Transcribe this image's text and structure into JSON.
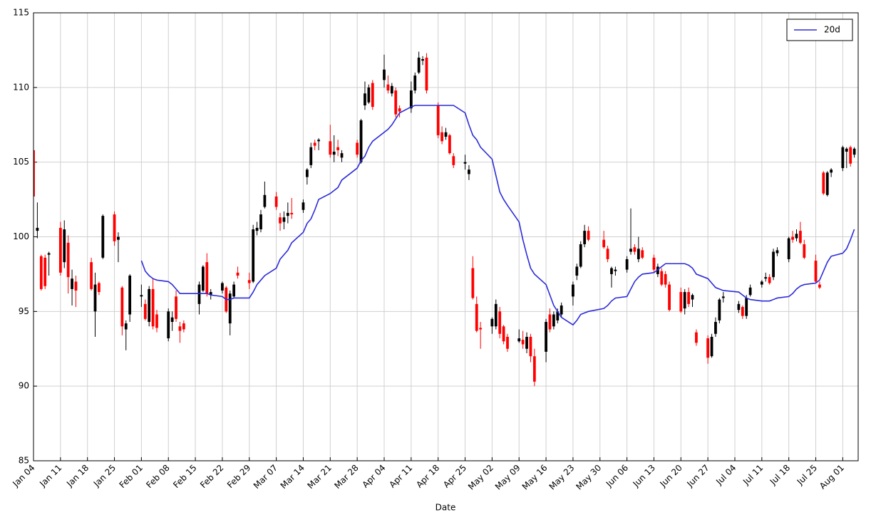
{
  "chart_data": {
    "type": "candlestick",
    "x_label": "Date",
    "x": [
      "Jan 04",
      "Jan 05",
      "Jan 06",
      "Jan 07",
      "Jan 08",
      "Jan 11",
      "Jan 12",
      "Jan 13",
      "Jan 14",
      "Jan 15",
      "Jan 19",
      "Jan 20",
      "Jan 21",
      "Jan 22",
      "Jan 25",
      "Jan 26",
      "Jan 27",
      "Jan 28",
      "Jan 29",
      "Feb 01",
      "Feb 02",
      "Feb 03",
      "Feb 04",
      "Feb 05",
      "Feb 08",
      "Feb 09",
      "Feb 10",
      "Feb 11",
      "Feb 12",
      "Feb 16",
      "Feb 17",
      "Feb 18",
      "Feb 19",
      "Feb 22",
      "Feb 23",
      "Feb 24",
      "Feb 25",
      "Feb 26",
      "Feb 29",
      "Mar 01",
      "Mar 02",
      "Mar 03",
      "Mar 04",
      "Mar 07",
      "Mar 08",
      "Mar 09",
      "Mar 10",
      "Mar 11",
      "Mar 14",
      "Mar 15",
      "Mar 16",
      "Mar 17",
      "Mar 18",
      "Mar 21",
      "Mar 22",
      "Mar 23",
      "Mar 24",
      "Mar 28",
      "Mar 29",
      "Mar 30",
      "Mar 31",
      "Apr 01",
      "Apr 04",
      "Apr 05",
      "Apr 06",
      "Apr 07",
      "Apr 08",
      "Apr 11",
      "Apr 12",
      "Apr 13",
      "Apr 14",
      "Apr 15",
      "Apr 18",
      "Apr 19",
      "Apr 20",
      "Apr 21",
      "Apr 22",
      "Apr 25",
      "Apr 26",
      "Apr 27",
      "Apr 28",
      "Apr 29",
      "May 02",
      "May 03",
      "May 04",
      "May 05",
      "May 06",
      "May 09",
      "May 10",
      "May 11",
      "May 12",
      "May 13",
      "May 16",
      "May 17",
      "May 18",
      "May 19",
      "May 20",
      "May 23",
      "May 24",
      "May 25",
      "May 26",
      "May 27",
      "May 31",
      "Jun 01",
      "Jun 02",
      "Jun 03",
      "Jun 06",
      "Jun 07",
      "Jun 08",
      "Jun 09",
      "Jun 10",
      "Jun 13",
      "Jun 14",
      "Jun 15",
      "Jun 16",
      "Jun 17",
      "Jun 20",
      "Jun 21",
      "Jun 22",
      "Jun 23",
      "Jun 24",
      "Jun 27",
      "Jun 28",
      "Jun 29",
      "Jun 30",
      "Jul 01",
      "Jul 05",
      "Jul 06",
      "Jul 07",
      "Jul 08",
      "Jul 11",
      "Jul 12",
      "Jul 13",
      "Jul 14",
      "Jul 15",
      "Jul 18",
      "Jul 19",
      "Jul 20",
      "Jul 21",
      "Jul 22",
      "Jul 25",
      "Jul 26",
      "Jul 27",
      "Jul 28",
      "Jul 29",
      "Aug 01",
      "Aug 02",
      "Aug 03",
      "Aug 04"
    ],
    "open": [
      105.8,
      100.4,
      98.7,
      98.6,
      98.8,
      100.6,
      98.3,
      99.6,
      96.5,
      97.0,
      98.3,
      95.0,
      96.9,
      98.6,
      101.5,
      99.8,
      96.6,
      93.8,
      94.8,
      96.0,
      95.5,
      94.3,
      96.5,
      94.8,
      93.2,
      94.3,
      96.0,
      94.0,
      94.2,
      95.5,
      96.4,
      98.3,
      96.1,
      96.4,
      96.6,
      94.2,
      96.0,
      97.6,
      97.1,
      97.0,
      100.4,
      100.5,
      102.0,
      102.7,
      101.3,
      101.0,
      101.4,
      101.6,
      101.8,
      104.0,
      104.8,
      106.3,
      106.4,
      106.4,
      105.5,
      106.0,
      105.3,
      106.3,
      105.0,
      108.8,
      109.0,
      110.3,
      110.5,
      110.2,
      109.6,
      109.8,
      108.6,
      108.6,
      109.8,
      111.0,
      111.8,
      112.0,
      108.8,
      107.0,
      106.7,
      106.8,
      105.4,
      104.9,
      104.2,
      97.9,
      95.5,
      93.9,
      94.0,
      94.0,
      95.0,
      94.0,
      93.3,
      93.0,
      93.1,
      92.5,
      93.3,
      92.0,
      92.3,
      94.8,
      94.0,
      94.4,
      94.8,
      96.0,
      97.4,
      98.0,
      99.5,
      100.4,
      99.8,
      99.2,
      97.5,
      97.7,
      97.8,
      99.0,
      99.3,
      98.5,
      99.1,
      98.6,
      97.5,
      97.7,
      97.5,
      96.8,
      96.3,
      95.2,
      96.3,
      95.8,
      93.6,
      93.2,
      92.0,
      93.5,
      94.4,
      95.9,
      95.1,
      95.3,
      94.7,
      96.1,
      96.8,
      97.2,
      97.3,
      97.3,
      98.9,
      98.5,
      100.0,
      99.9,
      100.4,
      99.5,
      98.4,
      96.8,
      104.3,
      102.8,
      104.3,
      104.6,
      105.7,
      106.0,
      105.5
    ],
    "high": [
      106.0,
      102.3,
      98.8,
      98.8,
      99.0,
      101.0,
      101.1,
      100.1,
      97.8,
      97.4,
      98.6,
      97.6,
      97.0,
      101.5,
      101.7,
      100.3,
      96.7,
      94.4,
      97.5,
      96.8,
      95.8,
      96.7,
      97.2,
      95.1,
      95.2,
      95.0,
      96.4,
      94.3,
      94.4,
      97.0,
      98.1,
      98.9,
      96.5,
      97.0,
      96.7,
      96.4,
      97.0,
      98.0,
      97.6,
      100.8,
      101.0,
      101.8,
      103.7,
      103.0,
      101.6,
      101.7,
      102.3,
      102.6,
      102.5,
      104.6,
      106.3,
      106.5,
      106.6,
      107.5,
      106.8,
      106.5,
      105.8,
      106.5,
      107.9,
      110.4,
      110.2,
      110.5,
      112.2,
      110.8,
      110.3,
      110.0,
      108.8,
      110.4,
      111.0,
      112.4,
      112.1,
      112.3,
      109.0,
      107.4,
      107.3,
      106.9,
      105.6,
      105.5,
      104.8,
      98.7,
      96.0,
      94.3,
      94.6,
      95.8,
      95.3,
      94.1,
      93.5,
      93.8,
      93.7,
      93.6,
      93.5,
      92.5,
      94.5,
      95.2,
      95.0,
      95.2,
      95.6,
      97.0,
      98.2,
      99.7,
      100.8,
      100.7,
      100.4,
      99.4,
      98.0,
      98.0,
      98.7,
      101.9,
      99.5,
      100.0,
      99.3,
      98.8,
      98.2,
      97.9,
      97.7,
      97.0,
      96.6,
      96.5,
      96.6,
      96.2,
      93.8,
      93.4,
      93.5,
      94.6,
      95.9,
      96.3,
      95.7,
      95.4,
      96.1,
      96.8,
      97.1,
      97.6,
      97.5,
      99.2,
      99.3,
      100.0,
      100.4,
      100.5,
      101.0,
      99.8,
      98.8,
      97.0,
      104.4,
      104.4,
      104.6,
      106.1,
      106.0,
      106.1,
      106.0
    ],
    "low": [
      102.4,
      99.9,
      96.4,
      96.5,
      97.4,
      97.4,
      97.9,
      96.2,
      95.4,
      95.3,
      96.4,
      93.3,
      96.1,
      98.5,
      99.4,
      98.3,
      93.4,
      92.4,
      94.3,
      95.3,
      94.4,
      94.0,
      93.8,
      93.6,
      93.0,
      93.7,
      94.3,
      92.9,
      93.6,
      94.8,
      96.3,
      96.0,
      95.8,
      96.2,
      94.9,
      93.4,
      95.9,
      97.2,
      96.5,
      96.9,
      100.1,
      100.3,
      101.9,
      101.8,
      100.4,
      100.5,
      100.9,
      101.2,
      101.6,
      103.5,
      104.6,
      105.8,
      105.8,
      105.3,
      105.0,
      105.4,
      105.0,
      105.3,
      104.9,
      108.5,
      108.9,
      108.5,
      110.0,
      109.6,
      109.4,
      108.0,
      108.0,
      108.3,
      109.6,
      110.9,
      111.5,
      109.6,
      106.6,
      106.2,
      106.5,
      105.5,
      104.6,
      104.5,
      103.8,
      95.8,
      93.6,
      92.5,
      93.5,
      93.8,
      93.2,
      92.8,
      92.3,
      92.9,
      92.5,
      92.2,
      91.6,
      90.0,
      91.6,
      93.6,
      93.8,
      94.2,
      94.6,
      95.4,
      97.1,
      97.9,
      99.3,
      99.7,
      99.2,
      98.3,
      96.6,
      97.4,
      97.6,
      98.8,
      98.8,
      98.3,
      98.5,
      97.6,
      97.3,
      96.7,
      96.6,
      95.0,
      94.9,
      94.8,
      95.3,
      95.3,
      92.7,
      91.5,
      91.9,
      93.3,
      94.2,
      95.6,
      94.9,
      94.5,
      94.5,
      96.0,
      96.6,
      97.0,
      96.8,
      97.1,
      98.7,
      98.3,
      99.6,
      99.7,
      99.5,
      98.5,
      96.9,
      96.5,
      102.8,
      102.7,
      104.0,
      104.4,
      104.6,
      104.7,
      105.3
    ],
    "close": [
      102.7,
      100.6,
      96.5,
      96.7,
      98.9,
      97.6,
      100.5,
      97.3,
      97.2,
      96.4,
      96.5,
      96.8,
      96.3,
      101.4,
      99.7,
      100.0,
      94.0,
      94.2,
      97.4,
      96.1,
      94.5,
      96.5,
      94.0,
      93.9,
      95.0,
      94.6,
      94.5,
      93.7,
      93.8,
      96.8,
      98.0,
      96.2,
      96.3,
      96.9,
      95.0,
      96.2,
      96.8,
      97.4,
      96.9,
      100.5,
      100.6,
      101.5,
      102.8,
      102.0,
      100.9,
      101.3,
      101.6,
      101.5,
      102.3,
      104.5,
      106.0,
      106.1,
      106.5,
      105.5,
      105.7,
      105.8,
      105.6,
      105.5,
      107.8,
      109.6,
      110.0,
      108.7,
      111.2,
      109.8,
      110.1,
      108.2,
      108.4,
      109.8,
      110.8,
      112.0,
      111.9,
      109.8,
      106.8,
      106.4,
      107.0,
      105.6,
      104.8,
      105.0,
      104.5,
      95.9,
      93.7,
      93.8,
      94.5,
      95.5,
      93.5,
      93.0,
      92.5,
      93.2,
      92.8,
      93.3,
      92.0,
      90.3,
      94.3,
      93.8,
      94.8,
      95.0,
      95.4,
      96.8,
      98.0,
      99.5,
      100.4,
      99.8,
      99.3,
      98.5,
      97.9,
      97.8,
      98.5,
      99.2,
      99.0,
      99.2,
      98.6,
      97.8,
      98.0,
      96.8,
      96.8,
      95.1,
      95.0,
      96.3,
      95.5,
      96.1,
      92.9,
      91.9,
      93.3,
      94.3,
      95.8,
      96.0,
      95.5,
      94.7,
      95.9,
      96.6,
      97.0,
      97.3,
      96.9,
      99.0,
      99.1,
      99.9,
      99.8,
      100.2,
      99.6,
      98.6,
      97.0,
      96.6,
      102.9,
      104.3,
      104.5,
      106.0,
      105.9,
      104.9,
      105.9
    ],
    "up_color": "#000000",
    "down_color": "#ff0000",
    "series": [
      {
        "name": "20d",
        "color": "#2b2bd9",
        "values": [
          null,
          null,
          null,
          null,
          null,
          null,
          null,
          null,
          null,
          null,
          null,
          null,
          null,
          null,
          null,
          null,
          null,
          null,
          null,
          98.4,
          97.7,
          97.4,
          97.2,
          97.1,
          97.0,
          96.8,
          96.5,
          96.2,
          96.2,
          96.2,
          96.2,
          96.2,
          96.1,
          96.0,
          95.8,
          95.8,
          95.9,
          95.9,
          95.9,
          96.3,
          96.8,
          97.1,
          97.4,
          97.9,
          98.5,
          98.8,
          99.1,
          99.6,
          100.3,
          100.9,
          101.2,
          101.8,
          102.5,
          102.9,
          103.1,
          103.3,
          103.8,
          104.6,
          105.1,
          105.4,
          106.0,
          106.4,
          107.0,
          107.2,
          107.5,
          107.9,
          108.3,
          108.7,
          108.8,
          108.8,
          108.8,
          108.8,
          108.8,
          108.8,
          108.8,
          108.8,
          108.8,
          108.3,
          107.5,
          106.8,
          106.5,
          106.0,
          105.2,
          104.1,
          103.0,
          102.5,
          102.1,
          101.0,
          99.8,
          98.8,
          97.9,
          97.5,
          96.8,
          96.1,
          95.4,
          95.0,
          94.6,
          94.1,
          94.4,
          94.8,
          94.9,
          95.0,
          95.2,
          95.4,
          95.7,
          95.9,
          96.0,
          96.5,
          97.0,
          97.3,
          97.5,
          97.6,
          97.8,
          98.0,
          98.2,
          98.2,
          98.2,
          98.2,
          98.1,
          97.9,
          97.5,
          97.2,
          96.9,
          96.6,
          96.5,
          96.4,
          96.3,
          96.1,
          95.9,
          95.8,
          95.7,
          95.7,
          95.7,
          95.8,
          95.9,
          96.0,
          96.2,
          96.5,
          96.7,
          96.8,
          96.9,
          97.1,
          97.7,
          98.3,
          98.7,
          98.9,
          99.2,
          99.8,
          100.5
        ]
      }
    ],
    "xlim": [
      "Jan 04",
      "Aug 05"
    ],
    "xticks": [
      "Jan 04",
      "Jan 11",
      "Jan 18",
      "Jan 25",
      "Feb 01",
      "Feb 08",
      "Feb 15",
      "Feb 22",
      "Feb 29",
      "Mar 07",
      "Mar 14",
      "Mar 21",
      "Mar 28",
      "Apr 04",
      "Apr 11",
      "Apr 18",
      "Apr 25",
      "May 02",
      "May 09",
      "May 16",
      "May 23",
      "May 30",
      "Jun 06",
      "Jun 13",
      "Jun 20",
      "Jun 27",
      "Jul 04",
      "Jul 11",
      "Jul 18",
      "Jul 25",
      "Aug 01"
    ],
    "ylim": [
      85,
      115
    ],
    "yticks": [
      85,
      90,
      95,
      100,
      105,
      110,
      115
    ],
    "grid": true,
    "legend": "upper right"
  }
}
